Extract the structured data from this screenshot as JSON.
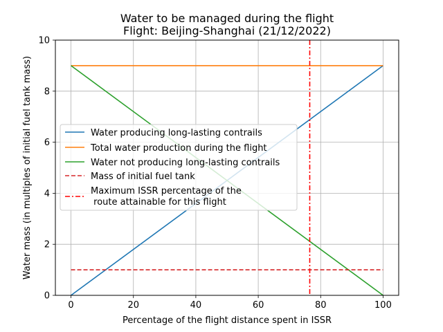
{
  "chart_data": {
    "type": "line",
    "title": "Water to be managed during the flight",
    "subtitle": "Flight: Beijing-Shanghai (21/12/2022)",
    "xlabel": "Percentage of the flight distance spent in ISSR",
    "ylabel": "Water mass (in multiples of initial fuel tank mass)",
    "xlim": [
      -5,
      105
    ],
    "ylim": [
      0,
      10
    ],
    "xticks": [
      0,
      20,
      40,
      60,
      80,
      100
    ],
    "yticks": [
      0,
      2,
      4,
      6,
      8,
      10
    ],
    "grid": true,
    "legend_position": "center-left",
    "series": [
      {
        "name": "Water producing long-lasting contrails",
        "x": [
          0,
          100
        ],
        "y": [
          0,
          9
        ],
        "color": "#1f77b4",
        "style": "solid"
      },
      {
        "name": "Total water production during the flight",
        "x": [
          0,
          100
        ],
        "y": [
          9,
          9
        ],
        "color": "#ff7f0e",
        "style": "solid"
      },
      {
        "name": "Water not producing long-lasting contrails",
        "x": [
          0,
          100
        ],
        "y": [
          9,
          0
        ],
        "color": "#2ca02c",
        "style": "solid"
      },
      {
        "name": "Mass of initial fuel tank",
        "x": [
          0,
          100
        ],
        "y": [
          1,
          1
        ],
        "color": "#d62728",
        "style": "dashed"
      }
    ],
    "vline": {
      "name_line1": "Maximum ISSR percentage of the",
      "name_line2": " route attainable for this flight",
      "x": 76.5,
      "color": "#ff0000",
      "style": "dashdot"
    }
  }
}
